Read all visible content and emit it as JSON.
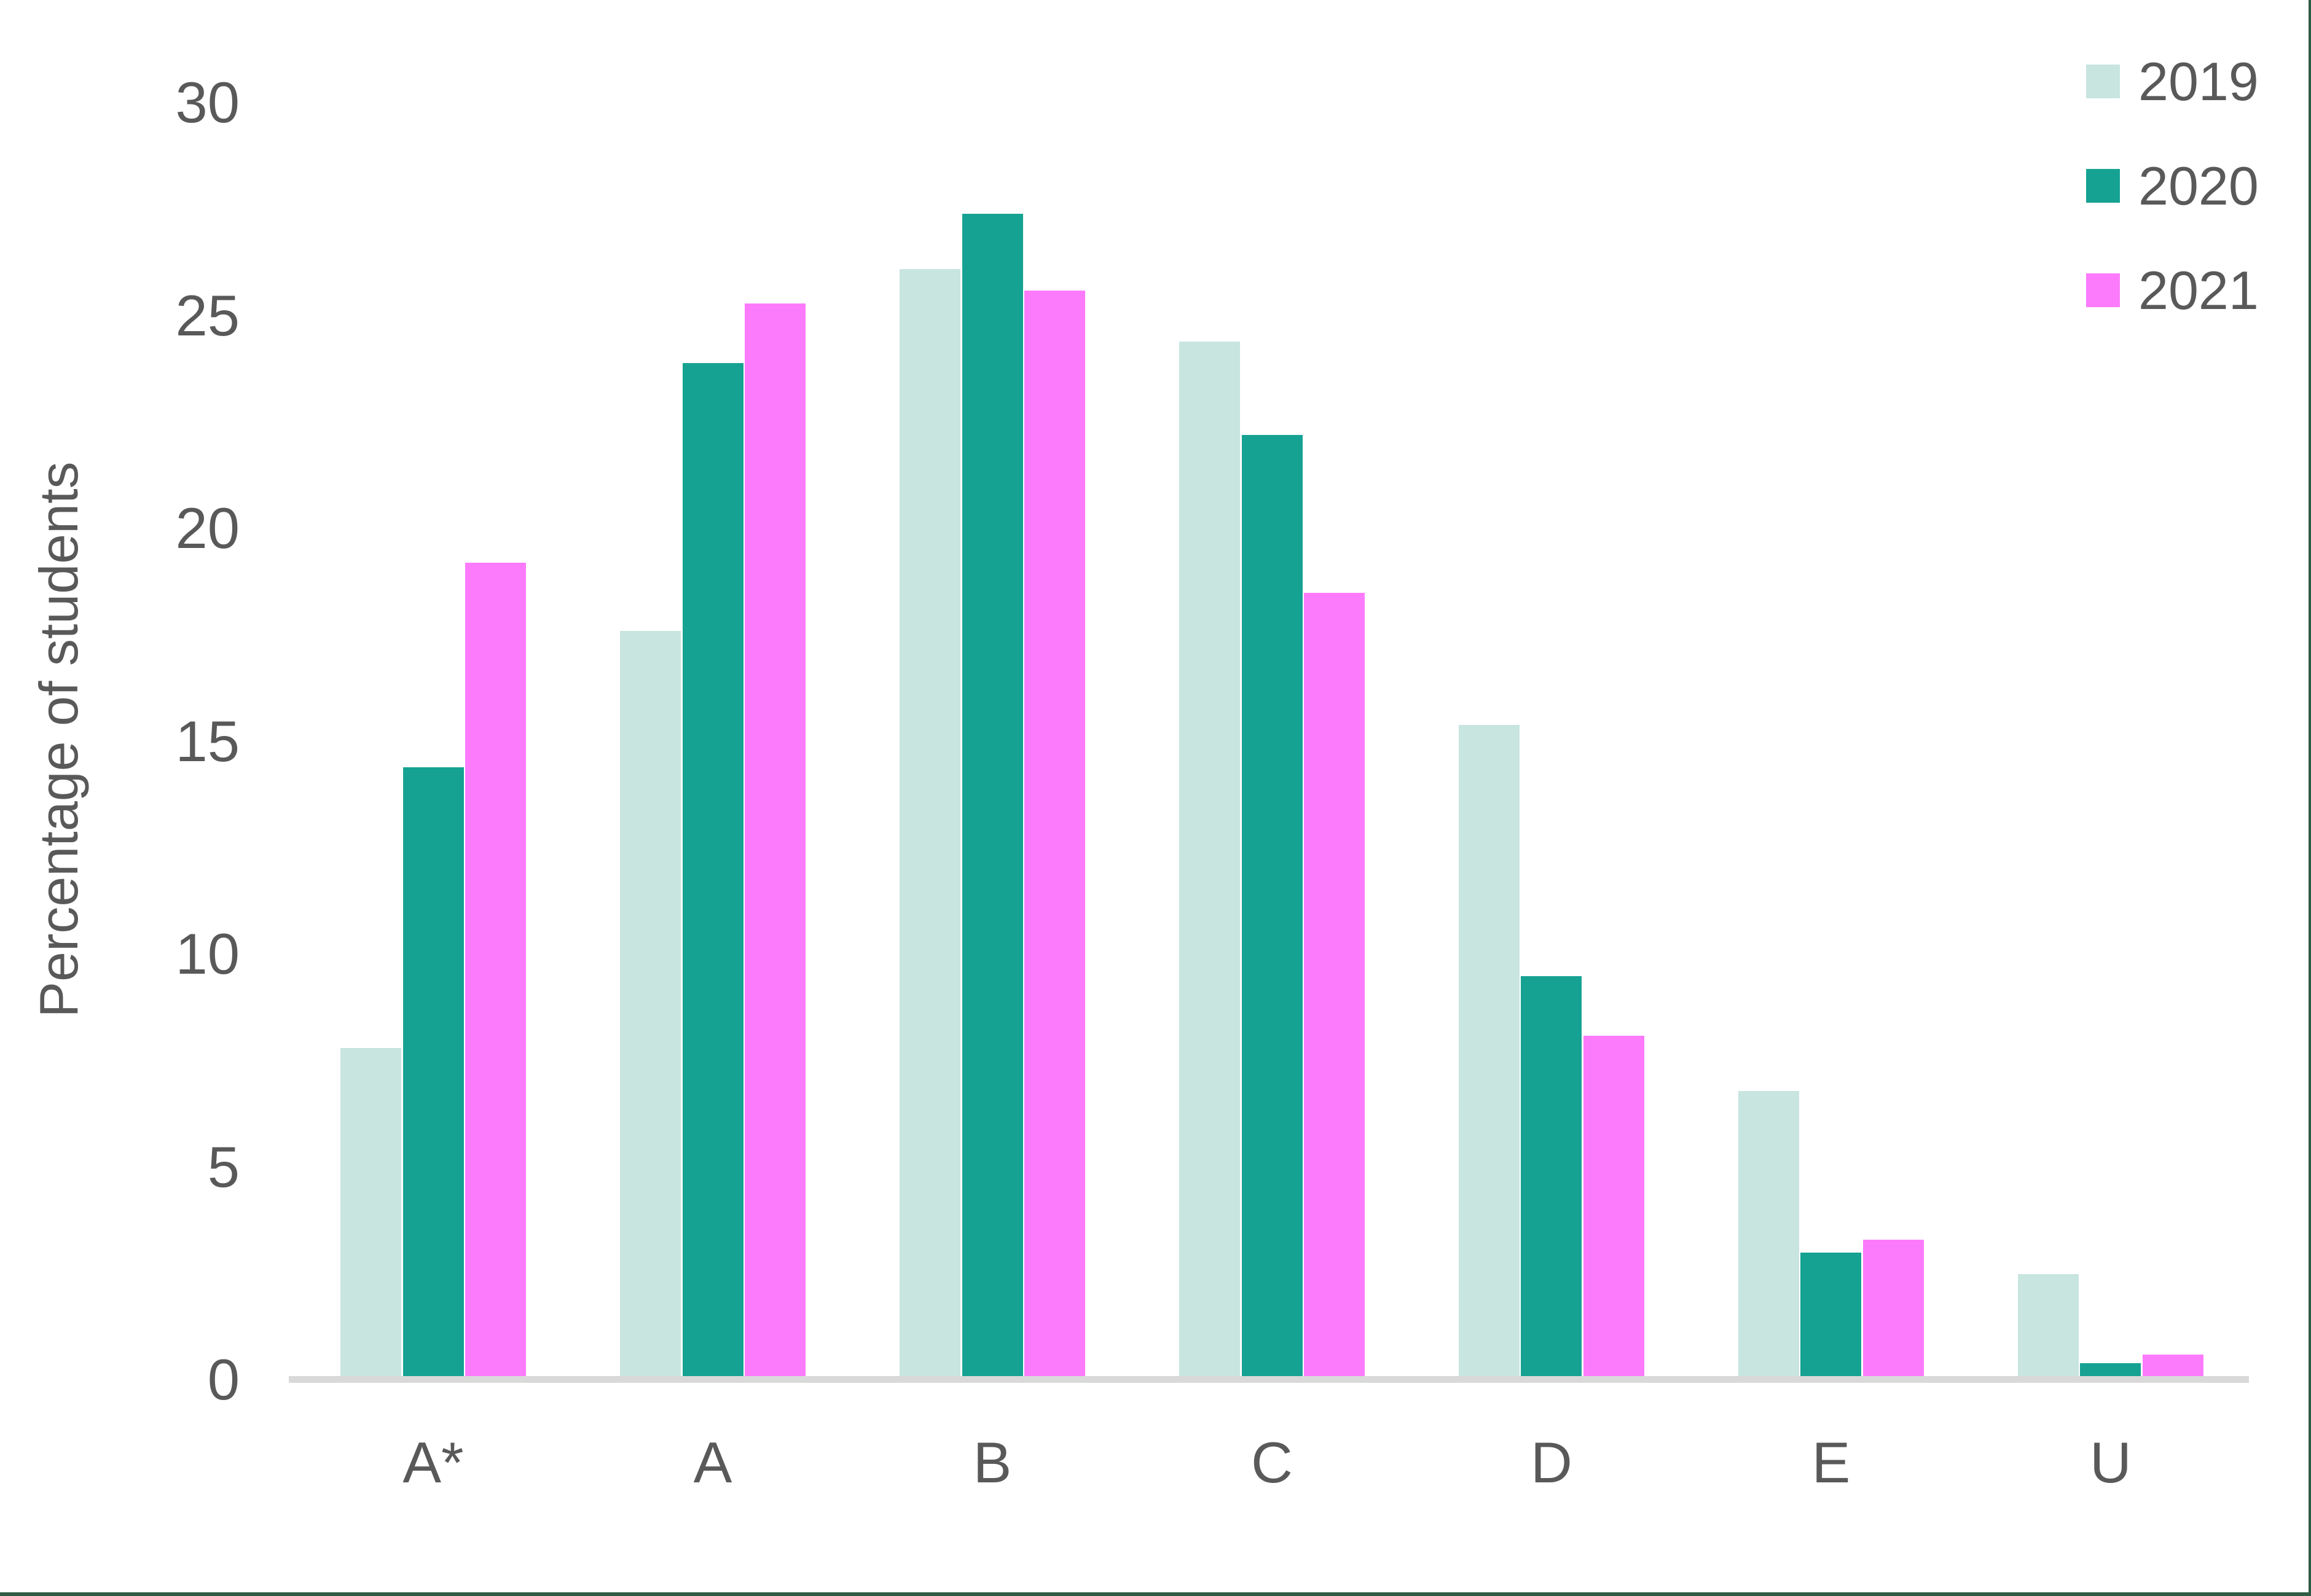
{
  "chart_data": {
    "type": "bar",
    "title": "",
    "categories": [
      "A*",
      "A",
      "B",
      "C",
      "D",
      "E",
      "U"
    ],
    "series": [
      {
        "name": "2019",
        "color": "#c8e5e0",
        "values": [
          7.7,
          17.5,
          26.0,
          24.3,
          15.3,
          6.7,
          2.4
        ]
      },
      {
        "name": "2020",
        "color": "#16a292",
        "values": [
          14.3,
          23.8,
          27.3,
          22.1,
          9.4,
          2.9,
          0.3
        ]
      },
      {
        "name": "2021",
        "color": "#fc7bfc",
        "values": [
          19.1,
          25.2,
          25.5,
          18.4,
          8.0,
          3.2,
          0.5
        ]
      }
    ],
    "xlabel": "",
    "ylabel": "Percentage of students",
    "ylim": [
      0,
      30
    ],
    "yticks": [
      0,
      5,
      10,
      15,
      20,
      25,
      30
    ],
    "grid": false,
    "legend_position": "top-right"
  },
  "colors": {
    "text": "#595959",
    "axis_line": "#d9d9d9",
    "border_line": "#2e5b43",
    "background": "#ffffff"
  }
}
